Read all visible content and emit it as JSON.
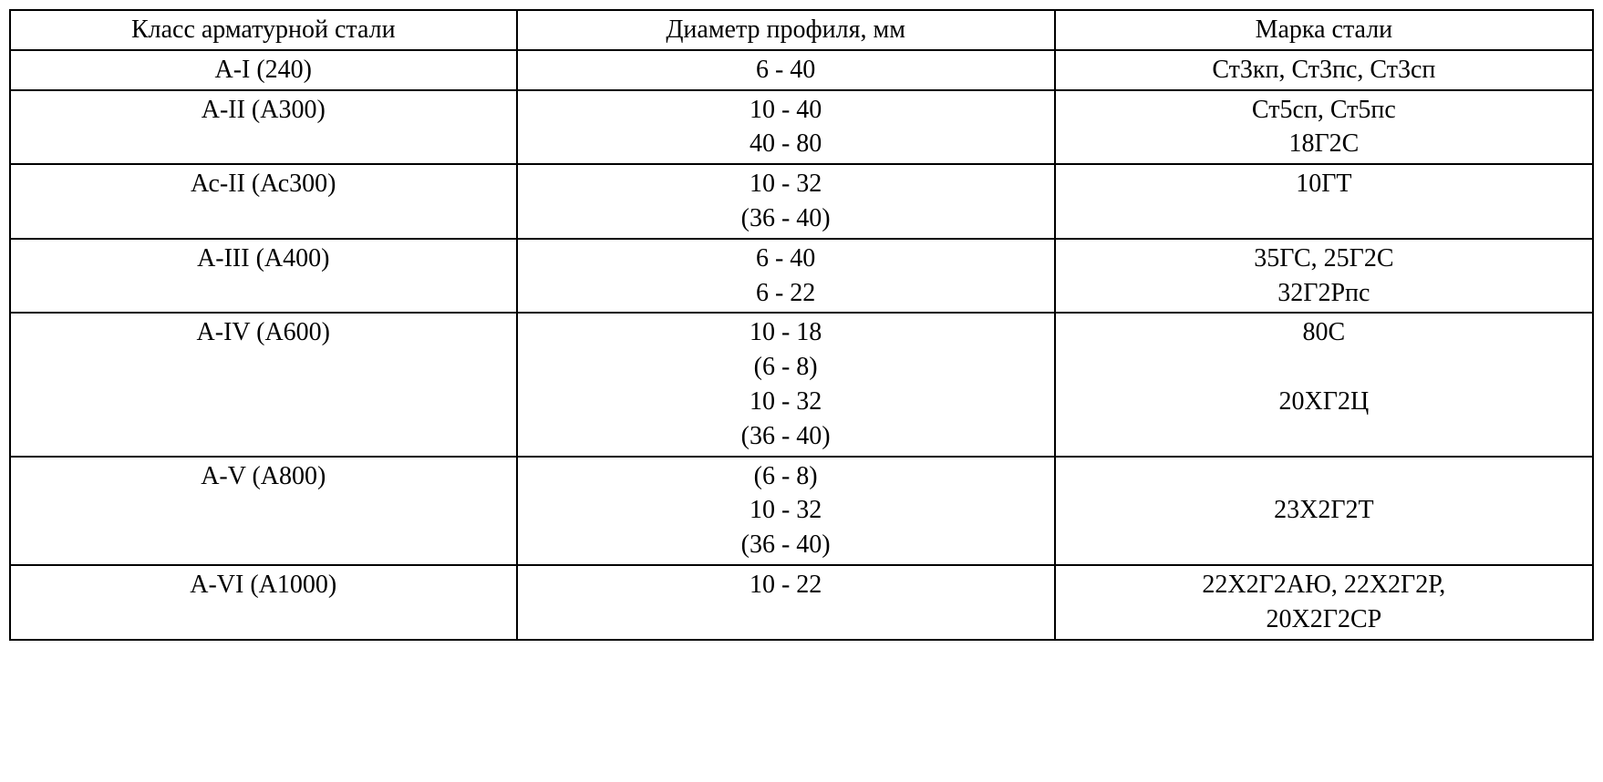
{
  "table": {
    "type": "table",
    "background_color": "#ffffff",
    "border_color": "#000000",
    "text_color": "#000000",
    "font_family": "Times New Roman",
    "font_size_pt": 21,
    "columns": [
      {
        "label": "Класс арматурной стали",
        "width_pct": 32,
        "align": "center"
      },
      {
        "label": "Диаметр профиля, мм",
        "width_pct": 34,
        "align": "center"
      },
      {
        "label": "Марка стали",
        "width_pct": 34,
        "align": "center"
      }
    ],
    "rows": [
      {
        "c1": "A-I (240)",
        "c2": "6 - 40",
        "c3": "Ст3кп, Ст3пс, Ст3сп"
      },
      {
        "c1": "A-II (А300)",
        "c2": "10 - 40\n40 - 80",
        "c3": "Ст5сп, Ст5пс\n18Г2С"
      },
      {
        "c1": "Ас-II (Ас300)",
        "c2": "10 - 32\n(36 - 40)",
        "c3": "10ГТ"
      },
      {
        "c1": "A-III (А400)",
        "c2": "6 - 40\n6 - 22",
        "c3": "35ГС, 25Г2С\n32Г2Рпс"
      },
      {
        "c1": "A-IV (А600)",
        "c2": "10 - 18\n(6 - 8)\n10 - 32\n(36 - 40)",
        "c3": "80С\n\n20ХГ2Ц"
      },
      {
        "c1": "A-V (А800)",
        "c2": "(6 - 8)\n10 - 32\n(36 - 40)",
        "c3": "\n23Х2Г2Т"
      },
      {
        "c1": "A-VI (А1000)",
        "c2": "10 - 22",
        "c3": "22Х2Г2АЮ, 22Х2Г2Р,\n20Х2Г2СР"
      }
    ]
  }
}
